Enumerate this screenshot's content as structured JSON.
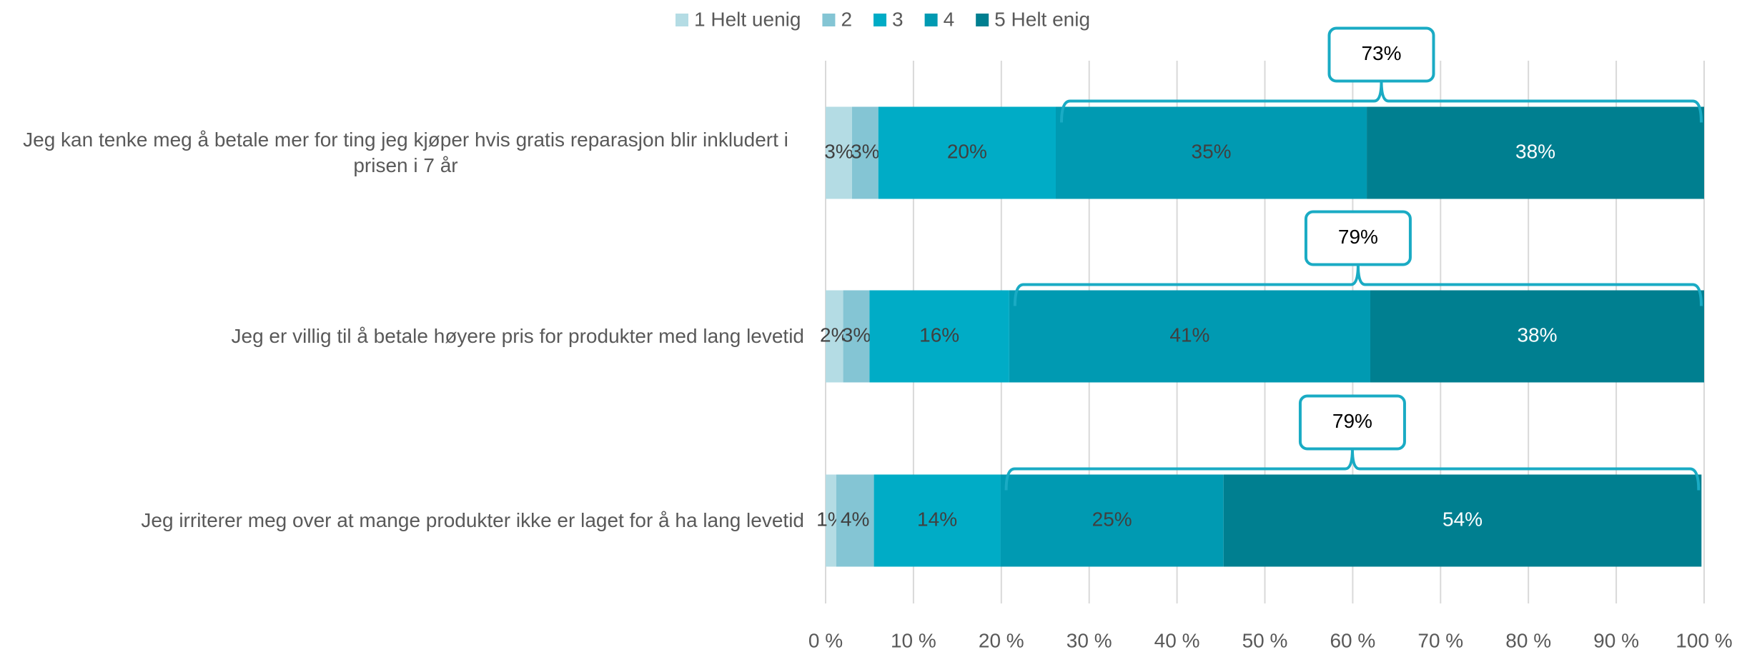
{
  "chart_data": {
    "type": "stacked-bar-horizontal",
    "categories": [
      "Jeg kan tenke meg å betale mer for ting jeg kjøper hvis gratis reparasjon blir inkludert i prisen i 7 år",
      "Jeg er villig til å betale høyere pris for produkter med lang levetid",
      "Jeg irriterer meg over at mange produkter ikke er laget for å ha lang levetid"
    ],
    "series": [
      {
        "name": "1 Helt uenig",
        "color": "#b4dce4",
        "values": [
          3.0,
          2.0,
          1.2
        ],
        "value_labels": [
          "3%",
          "2%",
          "1%"
        ]
      },
      {
        "name": "2",
        "color": "#84c5d4",
        "values": [
          3.0,
          3.0,
          4.3
        ],
        "value_labels": [
          "3%",
          "3%",
          "4%"
        ]
      },
      {
        "name": "3",
        "color": "#00acc6",
        "values": [
          20.2,
          15.9,
          14.4
        ],
        "value_labels": [
          "20%",
          "16%",
          "14%"
        ]
      },
      {
        "name": "4",
        "color": "#009ab2",
        "values": [
          35.4,
          41.1,
          25.4
        ],
        "value_labels": [
          "35%",
          "41%",
          "25%"
        ]
      },
      {
        "name": "5 Helt enig",
        "color": "#007f90",
        "values": [
          38.4,
          38.0,
          54.4
        ],
        "value_labels": [
          "38%",
          "38%",
          "54%"
        ]
      }
    ],
    "annotations": [
      "73%",
      "79%",
      "79%"
    ],
    "xlim": [
      0,
      100
    ],
    "xticks": [
      {
        "value": 0,
        "label": "0 %"
      },
      {
        "value": 10,
        "label": "10 %"
      },
      {
        "value": 20,
        "label": "20 %"
      },
      {
        "value": 30,
        "label": "30 %"
      },
      {
        "value": 40,
        "label": "40 %"
      },
      {
        "value": 50,
        "label": "50 %"
      },
      {
        "value": 60,
        "label": "60 %"
      },
      {
        "value": 70,
        "label": "70 %"
      },
      {
        "value": 80,
        "label": "80 %"
      },
      {
        "value": 90,
        "label": "90 %"
      },
      {
        "value": 100,
        "label": "100 %"
      }
    ],
    "grid": true,
    "legend": "top"
  }
}
